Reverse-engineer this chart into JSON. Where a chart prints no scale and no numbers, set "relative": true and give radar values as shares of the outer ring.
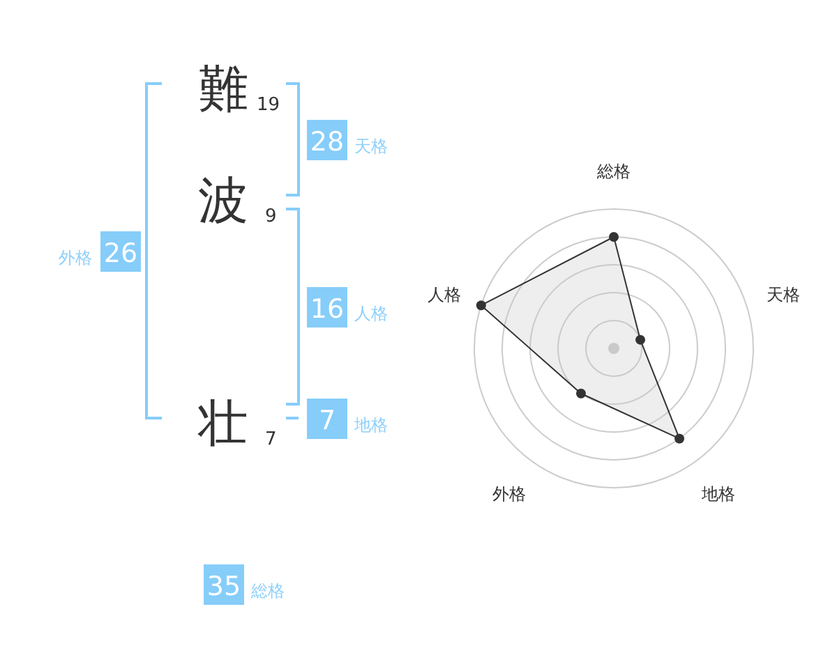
{
  "chart_data": [
    {
      "type": "other",
      "annotations": [
        "難",
        "19",
        "波",
        "9",
        "壮",
        "7",
        "28",
        "天格",
        "16",
        "人格",
        "7",
        "地格",
        "26",
        "外格",
        "35",
        "総格"
      ]
    },
    {
      "type": "radar",
      "categories": [
        "総格",
        "天格",
        "地格",
        "外格",
        "人格"
      ],
      "relative": true,
      "grid": true,
      "marker": "circle",
      "series": [
        {
          "color": "#333333",
          "values": [
            0.8,
            0.2,
            0.8,
            0.4,
            1.0
          ]
        }
      ]
    }
  ]
}
